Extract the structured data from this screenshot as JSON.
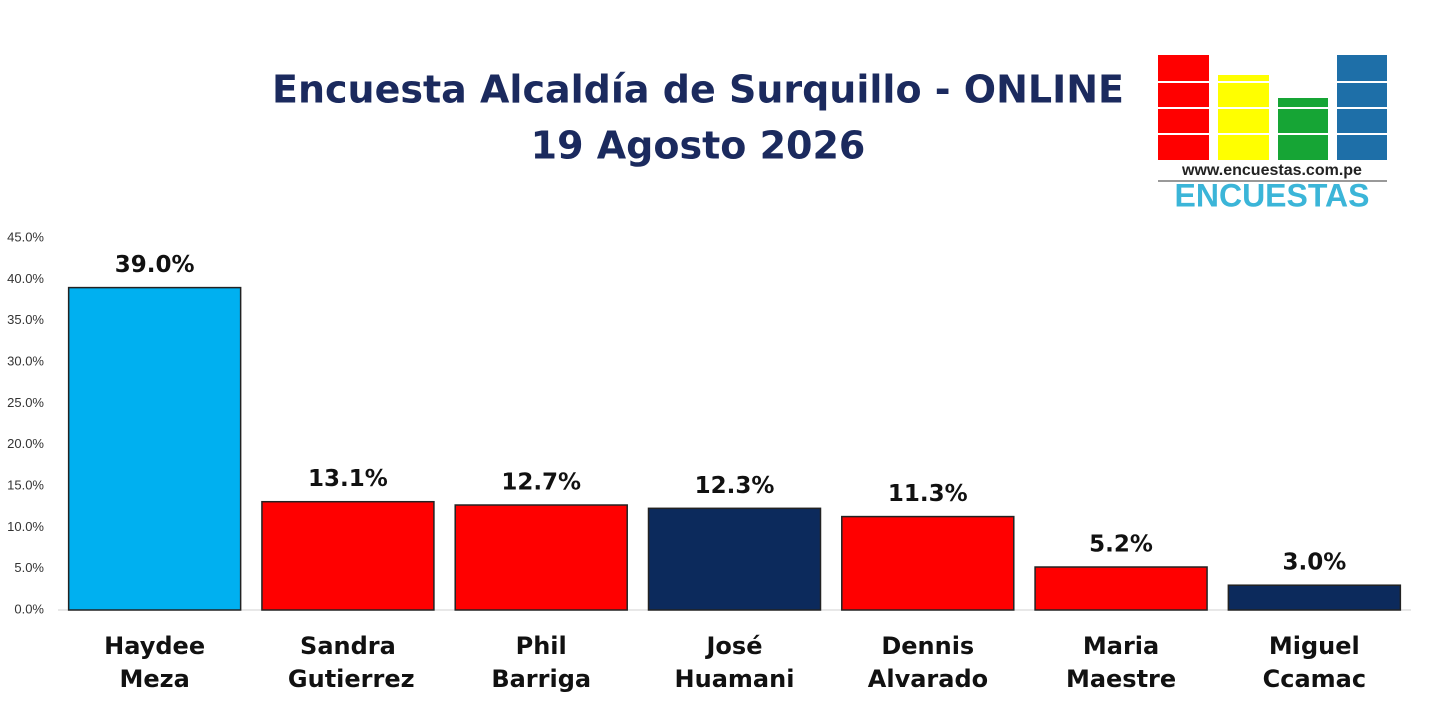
{
  "chart_data": {
    "type": "bar",
    "title": "Encuesta Alcaldía de Surquillo - ONLINE",
    "subtitle": "19 Agosto 2026",
    "logo_url": "www.encuestas.com.pe",
    "logo_name": "ENCUESTAS",
    "categories": [
      "Haydee Meza",
      "Sandra Gutierrez",
      "Phil Barriga",
      "José Huamani",
      "Dennis Alvarado",
      "Maria Maestre",
      "Miguel Ccamac"
    ],
    "values": [
      39.0,
      13.1,
      12.7,
      12.3,
      11.3,
      5.2,
      3.0
    ],
    "value_labels": [
      "39.0%",
      "13.1%",
      "12.7%",
      "12.3%",
      "11.3%",
      "5.2%",
      "3.0%"
    ],
    "colors": [
      "#00b0f0",
      "#ff0000",
      "#ff0000",
      "#0c2a5c",
      "#ff0000",
      "#ff0000",
      "#0c2a5c"
    ],
    "ylim": [
      0,
      45
    ],
    "yticks": [
      {
        "value": 0,
        "label": "0.0%"
      },
      {
        "value": 5,
        "label": "5.0%"
      },
      {
        "value": 10,
        "label": "10.0%"
      },
      {
        "value": 15,
        "label": "15.0%"
      },
      {
        "value": 20,
        "label": "20.0%"
      },
      {
        "value": 25,
        "label": "25.0%"
      },
      {
        "value": 30,
        "label": "30.0%"
      },
      {
        "value": 35,
        "label": "35.0%"
      },
      {
        "value": 40,
        "label": "40.0%"
      },
      {
        "value": 45,
        "label": "45.0%"
      }
    ],
    "grid": false
  }
}
